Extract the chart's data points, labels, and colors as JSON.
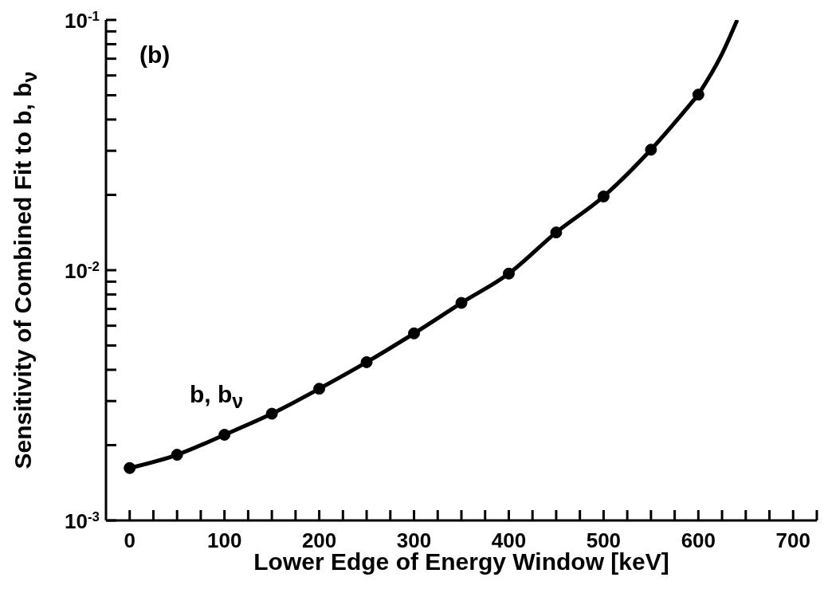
{
  "chart_data": {
    "type": "line",
    "xlabel": "Lower Edge of Energy Window [keV]",
    "ylabel": "Sensitivity of Combined Fit to b, b$_{ν}$",
    "log": "y",
    "xlim": [
      -25,
      725
    ],
    "xticks": [
      {
        "value": 0,
        "label": "0"
      },
      {
        "value": 25,
        "label": null
      },
      {
        "value": 50,
        "label": null
      },
      {
        "value": 75,
        "label": null
      },
      {
        "value": 100,
        "label": "100"
      },
      {
        "value": 125,
        "label": null
      },
      {
        "value": 150,
        "label": null
      },
      {
        "value": 175,
        "label": null
      },
      {
        "value": 200,
        "label": "200"
      },
      {
        "value": 225,
        "label": null
      },
      {
        "value": 250,
        "label": null
      },
      {
        "value": 275,
        "label": null
      },
      {
        "value": 300,
        "label": "300"
      },
      {
        "value": 325,
        "label": null
      },
      {
        "value": 350,
        "label": null
      },
      {
        "value": 375,
        "label": null
      },
      {
        "value": 400,
        "label": "400"
      },
      {
        "value": 425,
        "label": null
      },
      {
        "value": 450,
        "label": null
      },
      {
        "value": 475,
        "label": null
      },
      {
        "value": 500,
        "label": "500"
      },
      {
        "value": 525,
        "label": null
      },
      {
        "value": 550,
        "label": null
      },
      {
        "value": 575,
        "label": null
      },
      {
        "value": 600,
        "label": "600"
      },
      {
        "value": 625,
        "label": null
      },
      {
        "value": 650,
        "label": null
      },
      {
        "value": 675,
        "label": null
      },
      {
        "value": 700,
        "label": "700"
      },
      {
        "value": 725,
        "label": null
      }
    ],
    "ylim": [
      0.001,
      0.1
    ],
    "yticks": [
      {
        "value": 0.001,
        "label": "10$^{-3}$"
      },
      {
        "value": 0.002,
        "label": null
      },
      {
        "value": 0.003,
        "label": null
      },
      {
        "value": 0.004,
        "label": null
      },
      {
        "value": 0.005,
        "label": null
      },
      {
        "value": 0.006,
        "label": null
      },
      {
        "value": 0.007,
        "label": null
      },
      {
        "value": 0.008,
        "label": null
      },
      {
        "value": 0.009,
        "label": null
      },
      {
        "value": 0.01,
        "label": "10$^{-2}$"
      },
      {
        "value": 0.02,
        "label": null
      },
      {
        "value": 0.03,
        "label": null
      },
      {
        "value": 0.04,
        "label": null
      },
      {
        "value": 0.05,
        "label": null
      },
      {
        "value": 0.06,
        "label": null
      },
      {
        "value": 0.07,
        "label": null
      },
      {
        "value": 0.08,
        "label": null
      },
      {
        "value": 0.09,
        "label": null
      },
      {
        "value": 0.1,
        "label": "10$^{-1}$"
      }
    ],
    "series": [
      {
        "color": "#000000",
        "marker": "circle",
        "line_style": "solid",
        "x": [
          0,
          50,
          100,
          150,
          200,
          250,
          300,
          350,
          400,
          450,
          500,
          550,
          600
        ],
        "values": [
          0.00162,
          0.00183,
          0.0022,
          0.00267,
          0.00336,
          0.00429,
          0.00559,
          0.0074,
          0.00969,
          0.01415,
          0.0197,
          0.0303,
          0.0503
        ]
      },
      {
        "color": "#000000",
        "marker": "none",
        "line_style": "solid",
        "x": [
          600,
          624,
          641
        ],
        "values": [
          0.0503,
          0.0719,
          0.1
        ]
      }
    ],
    "annotations": [
      "(b)",
      "b, b$_{ν}$"
    ]
  }
}
